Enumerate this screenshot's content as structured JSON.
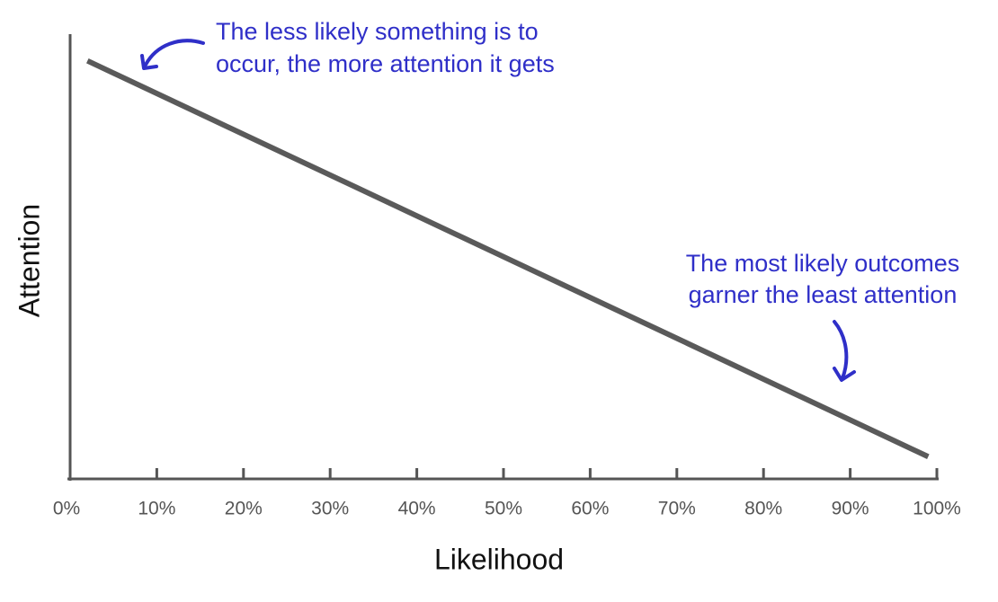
{
  "chart_data": {
    "type": "line",
    "x_label": "Likelihood",
    "y_label": "Attention",
    "x": [
      2,
      99
    ],
    "values": [
      94,
      5
    ],
    "color": "#5a5a5a",
    "xlim": [
      0,
      100
    ],
    "xticks": [
      {
        "value": 0,
        "label": "0%"
      },
      {
        "value": 10,
        "label": "10%"
      },
      {
        "value": 20,
        "label": "20%"
      },
      {
        "value": 30,
        "label": "30%"
      },
      {
        "value": 40,
        "label": "40%"
      },
      {
        "value": 50,
        "label": "50%"
      },
      {
        "value": 60,
        "label": "60%"
      },
      {
        "value": 70,
        "label": "70%"
      },
      {
        "value": 80,
        "label": "80%"
      },
      {
        "value": 90,
        "label": "90%"
      },
      {
        "value": 100,
        "label": "100%"
      }
    ],
    "ylim": [
      0,
      100
    ],
    "annotations": [
      {
        "lines": [
          "The less likely something is to",
          "occur, the more attention it gets"
        ]
      },
      {
        "lines": [
          "The most likely outcomes",
          "garner the least attention"
        ]
      }
    ]
  }
}
